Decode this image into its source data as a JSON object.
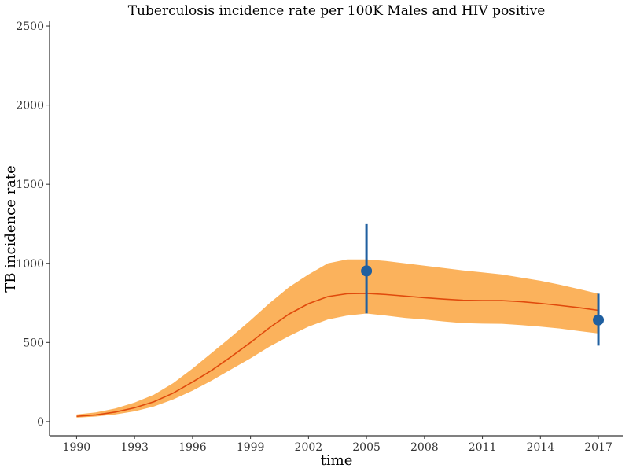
{
  "chart_data": {
    "type": "line",
    "title": "Tuberculosis incidence rate per 100K Males and HIV positive",
    "xlabel": "time",
    "ylabel": "TB incidence rate",
    "xlim": [
      1988.6,
      2018.3
    ],
    "ylim": [
      -90,
      2530
    ],
    "xticks": [
      1990,
      1993,
      1996,
      1999,
      2002,
      2005,
      2008,
      2011,
      2014,
      2017
    ],
    "yticks": [
      0,
      500,
      1000,
      1500,
      2000,
      2500
    ],
    "grid": false,
    "series": [
      {
        "kind": "line-with-band",
        "color": "#e04a0c",
        "band_color": "#fbb25c",
        "x": [
          1990,
          1991,
          1992,
          1993,
          1994,
          1995,
          1996,
          1997,
          1998,
          1999,
          2000,
          2001,
          2002,
          2003,
          2004,
          2005,
          2006,
          2007,
          2008,
          2009,
          2010,
          2011,
          2012,
          2013,
          2014,
          2015,
          2016,
          2017
        ],
        "y": [
          33,
          42,
          60,
          87,
          125,
          180,
          250,
          325,
          410,
          500,
          595,
          680,
          745,
          790,
          808,
          810,
          803,
          793,
          783,
          774,
          767,
          765,
          765,
          758,
          747,
          734,
          720,
          703
        ],
        "lower": [
          25,
          32,
          45,
          65,
          95,
          140,
          195,
          260,
          330,
          400,
          475,
          540,
          600,
          645,
          670,
          683,
          670,
          655,
          645,
          633,
          622,
          619,
          618,
          610,
          600,
          588,
          572,
          557
        ],
        "upper": [
          45,
          58,
          83,
          120,
          170,
          243,
          335,
          435,
          535,
          640,
          750,
          850,
          930,
          1000,
          1025,
          1025,
          1015,
          1000,
          985,
          970,
          955,
          943,
          930,
          910,
          890,
          865,
          837,
          808
        ]
      },
      {
        "kind": "points-with-errorbars",
        "color": "#1f5fa0",
        "x": [
          2005,
          2017
        ],
        "y": [
          952,
          642
        ],
        "lower": [
          684,
          480
        ],
        "upper": [
          1248,
          808
        ]
      }
    ]
  }
}
